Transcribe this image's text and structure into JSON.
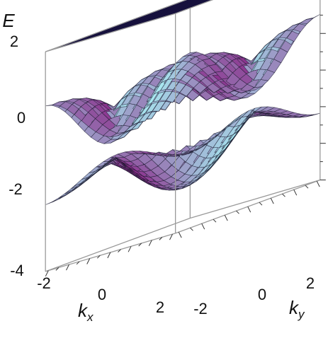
{
  "chart_data": {
    "type": "surface3d",
    "title": "",
    "axes": {
      "x": {
        "label": "k",
        "subscript": "x",
        "range": [
          -3.1416,
          3.1416
        ],
        "ticks": [
          "-2",
          "0",
          "2"
        ]
      },
      "y": {
        "label": "k",
        "subscript": "y",
        "range": [
          -3.1416,
          3.1416
        ],
        "ticks": [
          "-2",
          "0",
          "2"
        ]
      },
      "z": {
        "label": "E",
        "range": [
          -4,
          2
        ],
        "ticks": [
          "2",
          "0",
          "-2",
          "-4"
        ]
      }
    },
    "surfaces": [
      {
        "name": "",
        "description": "flat band",
        "z": 2
      },
      {
        "name": "",
        "description": "upper dispersive band",
        "z_min": -1.0,
        "z_max": 1.6
      },
      {
        "name": "",
        "description": "lower dispersive band",
        "z_min": -3.4,
        "z_max": -1.0
      }
    ],
    "colors": {
      "flat_band": "#3a2d7a",
      "surface_cyan": "#a9eff4",
      "surface_purple": "#8a2c8a",
      "mesh": "#1a1a2e",
      "box": "#9a9a9a"
    },
    "grid": false,
    "box": true
  }
}
